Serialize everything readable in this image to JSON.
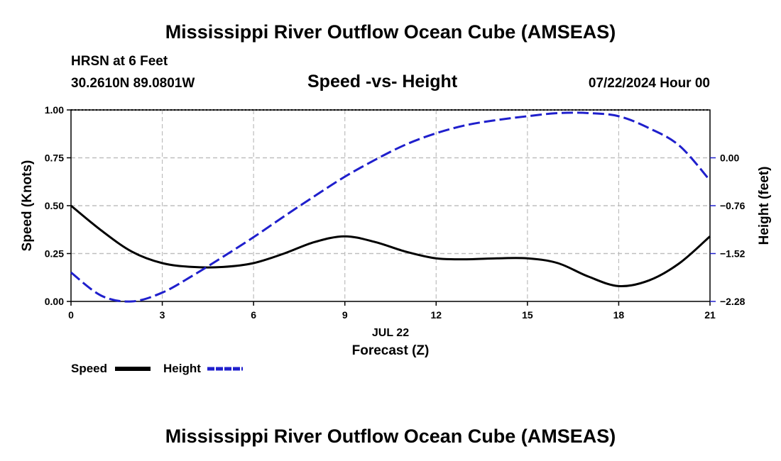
{
  "header": {
    "title": "Mississippi River Outflow Ocean Cube (AMSEAS)",
    "station": "HRSN at 6 Feet",
    "coords": "30.2610N  89.0801W",
    "date": "07/22/2024 Hour 00",
    "footer_title": "Mississippi River Outflow Ocean Cube (AMSEAS)"
  },
  "chart_data": {
    "type": "line",
    "title": "Speed -vs- Height",
    "xlabel": "Forecast (Z)",
    "date_label": "JUL 22",
    "ylabel_left": "Speed (Knots)",
    "ylabel_right": "Height (feet)",
    "x_ticks": [
      "0",
      "3",
      "6",
      "9",
      "12",
      "15",
      "18",
      "21"
    ],
    "y_ticks_left": [
      "0.00",
      "0.25",
      "0.50",
      "0.75",
      "1.00"
    ],
    "y_ticks_right": [
      "−2.28",
      "−1.52",
      "−0.76",
      "0.00"
    ],
    "xlim": [
      0,
      21
    ],
    "ylim_left": [
      0,
      1
    ],
    "ylim_right": [
      -2.28,
      0.76
    ],
    "grid": true,
    "series": [
      {
        "name": "Speed",
        "axis": "left",
        "color": "#000000",
        "style": "solid",
        "x": [
          0,
          1,
          2,
          3,
          4,
          5,
          6,
          7,
          8,
          9,
          10,
          11,
          12,
          13,
          14,
          15,
          16,
          17,
          18,
          19,
          20,
          21
        ],
        "values": [
          0.5,
          0.37,
          0.26,
          0.2,
          0.18,
          0.18,
          0.2,
          0.25,
          0.31,
          0.34,
          0.31,
          0.26,
          0.225,
          0.22,
          0.225,
          0.225,
          0.2,
          0.13,
          0.08,
          0.11,
          0.2,
          0.34
        ]
      },
      {
        "name": "Height",
        "axis": "right",
        "color": "#1f1fcc",
        "style": "dashed",
        "x": [
          0,
          1,
          2,
          3,
          4,
          5,
          6,
          7,
          8,
          9,
          10,
          11,
          12,
          13,
          14,
          15,
          16,
          17,
          18,
          19,
          20,
          21
        ],
        "values": [
          -1.82,
          -2.19,
          -2.28,
          -2.14,
          -1.87,
          -1.57,
          -1.26,
          -0.93,
          -0.61,
          -0.3,
          -0.03,
          0.21,
          0.39,
          0.52,
          0.6,
          0.66,
          0.71,
          0.71,
          0.66,
          0.47,
          0.19,
          -0.36
        ]
      }
    ]
  }
}
